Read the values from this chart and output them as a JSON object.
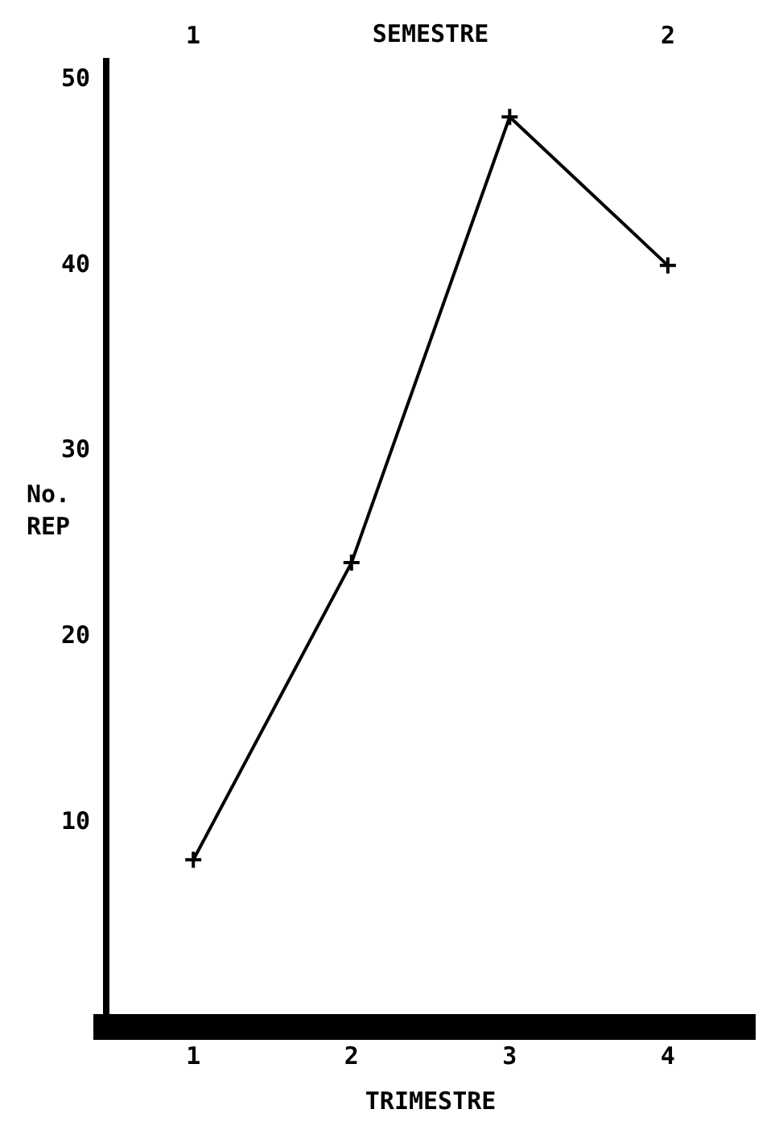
{
  "chart_data": {
    "type": "line",
    "xlabel": "TRIMESTRE",
    "ylabel": "No.\nREP",
    "x2label": "SEMESTRE",
    "x": [
      1,
      2,
      3,
      4
    ],
    "values": [
      8,
      24,
      48,
      40
    ],
    "color": "#000000",
    "xlim": [
      0.45,
      4.55
    ],
    "xticks": [
      1,
      2,
      3,
      4
    ],
    "x2lim": [
      0.817,
      2.183
    ],
    "x2ticks": [
      1,
      2
    ],
    "ylim": [
      -1,
      51
    ],
    "yticks": [
      10,
      20,
      30,
      40,
      50
    ],
    "grid": false,
    "legend": false,
    "marker": "cross",
    "line_style": "solid"
  }
}
